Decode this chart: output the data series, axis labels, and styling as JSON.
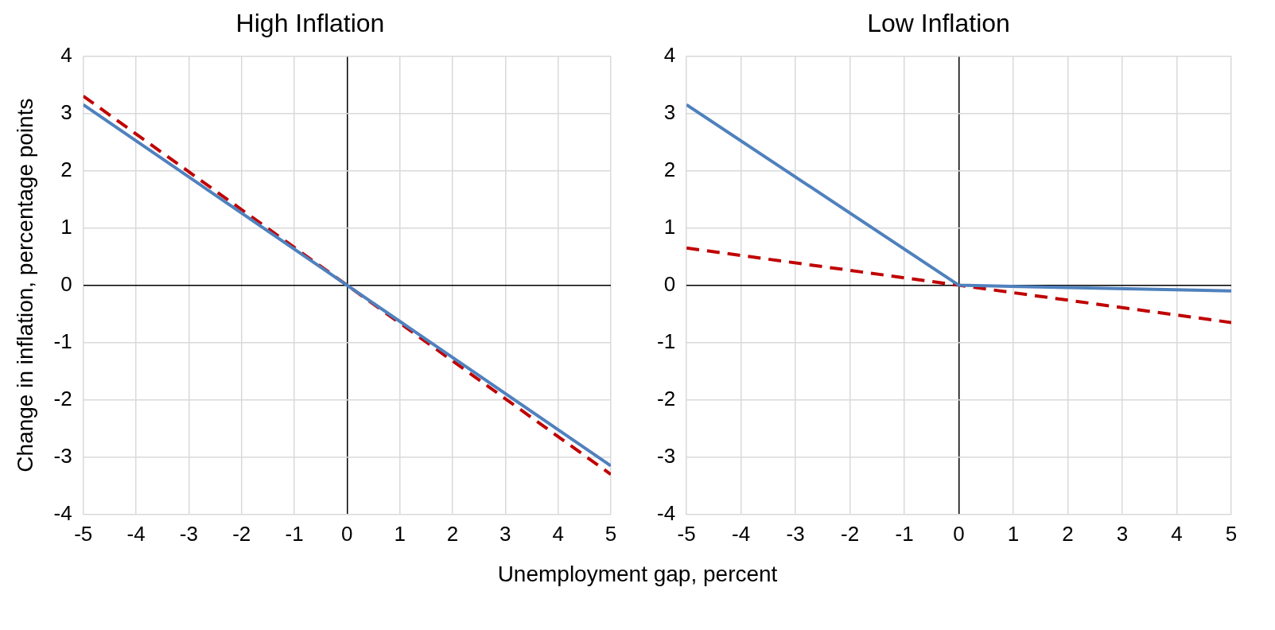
{
  "chart_data": [
    {
      "type": "line",
      "title": "High Inflation",
      "ylabel": "Change in inflation, percentage points",
      "xlabel": "Unemployment gap, percent",
      "xlim": [
        -5,
        5
      ],
      "xticks": [
        -5,
        -4,
        -3,
        -2,
        -1,
        0,
        1,
        2,
        3,
        4,
        5
      ],
      "ylim": [
        -4,
        4
      ],
      "yticks": [
        -4,
        -3,
        -2,
        -1,
        0,
        1,
        2,
        3,
        4
      ],
      "grid": true,
      "legend": false,
      "marker": "none",
      "series": [
        {
          "color": "#4f81bd",
          "x": [
            -5,
            0,
            5
          ],
          "values": [
            3.15,
            0,
            -3.15
          ],
          "line_style": "solid"
        },
        {
          "color": "#c00000",
          "x": [
            -5,
            0,
            5
          ],
          "values": [
            3.3,
            0,
            -3.3
          ],
          "line_style": "dashed"
        }
      ]
    },
    {
      "type": "line",
      "title": "Low Inflation",
      "xlim": [
        -5,
        5
      ],
      "xticks": [
        -5,
        -4,
        -3,
        -2,
        -1,
        0,
        1,
        2,
        3,
        4,
        5
      ],
      "ylim": [
        -4,
        4
      ],
      "yticks": [
        -4,
        -3,
        -2,
        -1,
        0,
        1,
        2,
        3,
        4
      ],
      "grid": true,
      "legend": false,
      "marker": "none",
      "series": [
        {
          "color": "#4f81bd",
          "x": [
            -5,
            0,
            5
          ],
          "values": [
            3.15,
            0,
            -0.1
          ],
          "line_style": "solid"
        },
        {
          "color": "#c00000",
          "x": [
            -5,
            0,
            5
          ],
          "values": [
            0.65,
            0,
            -0.65
          ],
          "line_style": "dashed"
        }
      ]
    }
  ]
}
